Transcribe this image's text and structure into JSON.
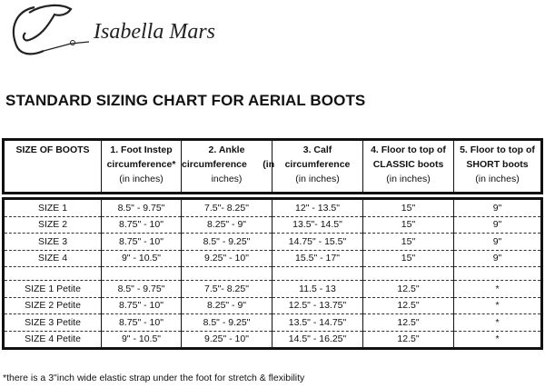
{
  "logo": {
    "brand": "Isabella Mars",
    "icon": "horse-head-logo"
  },
  "title": "STANDARD SIZING CHART FOR AERIAL BOOTS",
  "headers": [
    {
      "l1": "SIZE OF BOOTS",
      "l2": "",
      "l3": ""
    },
    {
      "l1": "1. Foot Instep",
      "l2": "circumference*",
      "l3": "(in inches)"
    },
    {
      "l1": "2. Ankle",
      "l2": "circumference      (in",
      "l3": "inches)"
    },
    {
      "l1": "3. Calf",
      "l2": "circumference",
      "l3": "(in inches)"
    },
    {
      "l1": "4. Floor to top of",
      "l2": "CLASSIC boots",
      "l3": "(in inches)"
    },
    {
      "l1": "5. Floor to top of",
      "l2": "SHORT boots",
      "l3": "(in inches)"
    }
  ],
  "rows": [
    [
      "SIZE 1",
      "8.5\" - 9.75\"",
      "7.5\"- 8.25\"",
      "12\" - 13.5\"",
      "15\"",
      "9\""
    ],
    [
      "SIZE 2",
      "8.75\" - 10\"",
      "8.25\" - 9\"",
      "13.5\"- 14.5\"",
      "15\"",
      "9\""
    ],
    [
      "SIZE 3",
      "8.75\" - 10\"",
      "8.5\" - 9.25\"",
      "14.75\" - 15.5\"",
      "15\"",
      "9\""
    ],
    [
      "SIZE 4",
      "9\" - 10.5\"",
      "9.25\" - 10\"",
      "15.5\" - 17\"",
      "15\"",
      "9\""
    ],
    [
      "",
      "",
      "",
      "",
      "",
      ""
    ],
    [
      "SIZE 1 Petite",
      "8.5\" - 9.75\"",
      "7.5\"- 8.25\"",
      "11.5 - 13",
      "12.5\"",
      "*"
    ],
    [
      "SIZE 2 Petite",
      "8.75\" - 10\"",
      "8.25\" - 9\"",
      "12.5\" - 13.75\"",
      "12.5\"",
      "*"
    ],
    [
      "SIZE 3 Petite",
      "8.75\" - 10\"",
      "8.5\" - 9.25\"",
      "13.5\" - 14.75\"",
      "12.5\"",
      "*"
    ],
    [
      "SIZE 4 Petite",
      "9\" - 10.5\"",
      "9.25\" - 10\"",
      "14.5\" - 16.25\"",
      "12.5\"",
      "*"
    ]
  ],
  "footnote": "*there is a 3\"inch wide elastic strap under the foot for stretch & flexibility"
}
